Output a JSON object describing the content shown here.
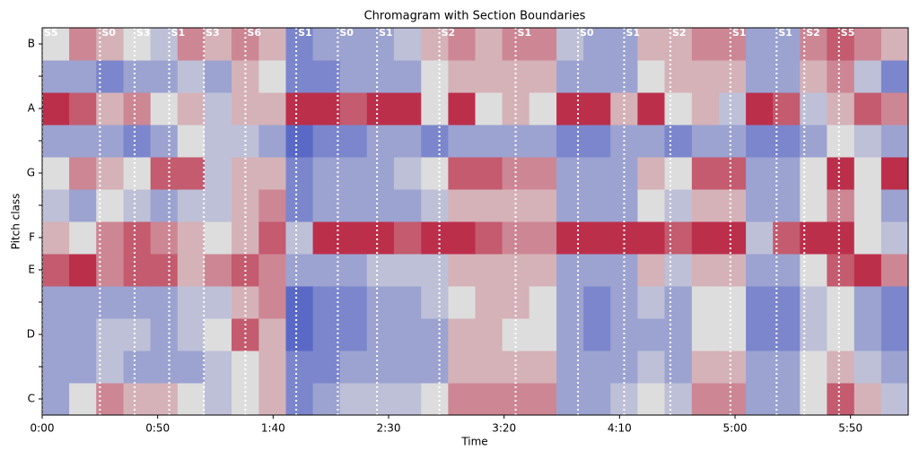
{
  "chart_data": {
    "type": "heatmap",
    "title": "Chromagram with Section Boundaries",
    "x_label": "Time",
    "y_label": "Pitch class",
    "categories": [
      "C",
      null,
      "D",
      null,
      "E",
      "F",
      null,
      "G",
      null,
      "A",
      null,
      "B"
    ],
    "xlim": [
      0,
      375
    ],
    "xticks": [
      {
        "value": 0,
        "label": "0:00"
      },
      {
        "value": 50,
        "label": "0:50"
      },
      {
        "value": 100,
        "label": "1:40"
      },
      {
        "value": 150,
        "label": "2:30"
      },
      {
        "value": 200,
        "label": "3:20"
      },
      {
        "value": 250,
        "label": "4:10"
      },
      {
        "value": 300,
        "label": "5:00"
      },
      {
        "value": 350,
        "label": "5:50"
      }
    ],
    "x_edges": [
      0,
      11.7,
      23.4,
      35.2,
      46.9,
      58.6,
      70.3,
      82,
      93.8,
      105.5,
      117.2,
      128.9,
      140.6,
      152.3,
      164.1,
      175.8,
      187.5,
      199.2,
      210.9,
      222.7,
      234.4,
      246.1,
      257.8,
      269.5,
      281.3,
      293,
      304.7,
      316.4,
      328.1,
      339.8,
      351.6,
      363.3,
      375
    ],
    "colors": [
      "#3b4cc0",
      "#dddddd",
      "#b40426"
    ],
    "zlim": [
      0,
      1
    ],
    "z": [
      [
        0.3,
        0.5,
        0.7,
        0.6,
        0.6,
        0.5,
        0.4,
        0.5,
        0.6,
        0.2,
        0.3,
        0.4,
        0.4,
        0.4,
        0.5,
        0.7,
        0.7,
        0.7,
        0.7,
        0.3,
        0.3,
        0.4,
        0.5,
        0.4,
        0.7,
        0.7,
        0.3,
        0.3,
        0.5,
        0.8,
        0.6,
        0.4
      ],
      [
        0.3,
        0.3,
        0.4,
        0.3,
        0.3,
        0.3,
        0.4,
        0.5,
        0.6,
        0.2,
        0.2,
        0.3,
        0.3,
        0.3,
        0.3,
        0.6,
        0.6,
        0.6,
        0.6,
        0.3,
        0.3,
        0.3,
        0.4,
        0.3,
        0.6,
        0.6,
        0.3,
        0.3,
        0.5,
        0.6,
        0.4,
        0.3
      ],
      [
        0.3,
        0.3,
        0.4,
        0.4,
        0.3,
        0.4,
        0.5,
        0.8,
        0.6,
        0.1,
        0.2,
        0.2,
        0.3,
        0.3,
        0.3,
        0.6,
        0.6,
        0.5,
        0.5,
        0.3,
        0.2,
        0.3,
        0.3,
        0.3,
        0.5,
        0.5,
        0.2,
        0.2,
        0.4,
        0.5,
        0.3,
        0.2
      ],
      [
        0.3,
        0.3,
        0.3,
        0.3,
        0.3,
        0.4,
        0.4,
        0.6,
        0.7,
        0.1,
        0.2,
        0.2,
        0.3,
        0.3,
        0.4,
        0.5,
        0.6,
        0.6,
        0.5,
        0.3,
        0.2,
        0.3,
        0.4,
        0.3,
        0.5,
        0.5,
        0.2,
        0.2,
        0.4,
        0.5,
        0.3,
        0.2
      ],
      [
        0.8,
        0.9,
        0.7,
        0.8,
        0.8,
        0.6,
        0.7,
        0.8,
        0.7,
        0.3,
        0.3,
        0.3,
        0.4,
        0.4,
        0.4,
        0.6,
        0.6,
        0.6,
        0.6,
        0.3,
        0.3,
        0.3,
        0.6,
        0.4,
        0.6,
        0.6,
        0.3,
        0.3,
        0.5,
        0.8,
        0.9,
        0.7
      ],
      [
        0.6,
        0.5,
        0.7,
        0.8,
        0.7,
        0.6,
        0.5,
        0.6,
        0.8,
        0.4,
        0.9,
        0.9,
        0.9,
        0.8,
        0.9,
        0.9,
        0.8,
        0.7,
        0.7,
        0.9,
        0.9,
        0.9,
        0.9,
        0.8,
        0.9,
        0.9,
        0.4,
        0.8,
        0.9,
        0.9,
        0.5,
        0.4
      ],
      [
        0.4,
        0.3,
        0.5,
        0.4,
        0.3,
        0.4,
        0.4,
        0.6,
        0.7,
        0.2,
        0.3,
        0.3,
        0.3,
        0.3,
        0.4,
        0.6,
        0.6,
        0.6,
        0.6,
        0.3,
        0.3,
        0.3,
        0.5,
        0.4,
        0.6,
        0.6,
        0.3,
        0.3,
        0.5,
        0.7,
        0.5,
        0.3
      ],
      [
        0.5,
        0.7,
        0.6,
        0.5,
        0.8,
        0.8,
        0.4,
        0.6,
        0.6,
        0.2,
        0.3,
        0.3,
        0.3,
        0.4,
        0.5,
        0.8,
        0.8,
        0.7,
        0.7,
        0.3,
        0.3,
        0.3,
        0.6,
        0.5,
        0.8,
        0.8,
        0.3,
        0.3,
        0.5,
        0.9,
        0.5,
        0.9
      ],
      [
        0.3,
        0.3,
        0.3,
        0.2,
        0.3,
        0.5,
        0.4,
        0.4,
        0.3,
        0.1,
        0.2,
        0.2,
        0.3,
        0.3,
        0.2,
        0.3,
        0.3,
        0.3,
        0.3,
        0.2,
        0.2,
        0.3,
        0.3,
        0.2,
        0.3,
        0.3,
        0.2,
        0.2,
        0.3,
        0.5,
        0.4,
        0.3
      ],
      [
        0.9,
        0.8,
        0.6,
        0.7,
        0.5,
        0.6,
        0.4,
        0.6,
        0.6,
        0.9,
        0.9,
        0.8,
        0.9,
        0.9,
        0.5,
        0.9,
        0.5,
        0.6,
        0.5,
        0.9,
        0.9,
        0.6,
        0.9,
        0.5,
        0.6,
        0.4,
        0.9,
        0.8,
        0.4,
        0.6,
        0.8,
        0.7
      ],
      [
        0.3,
        0.3,
        0.2,
        0.3,
        0.3,
        0.4,
        0.3,
        0.6,
        0.5,
        0.2,
        0.2,
        0.3,
        0.3,
        0.3,
        0.5,
        0.6,
        0.6,
        0.6,
        0.6,
        0.3,
        0.3,
        0.3,
        0.5,
        0.6,
        0.6,
        0.6,
        0.3,
        0.3,
        0.6,
        0.7,
        0.4,
        0.2
      ],
      [
        0.5,
        0.7,
        0.6,
        0.5,
        0.4,
        0.7,
        0.6,
        0.7,
        0.6,
        0.2,
        0.3,
        0.3,
        0.3,
        0.4,
        0.6,
        0.7,
        0.6,
        0.7,
        0.7,
        0.4,
        0.3,
        0.3,
        0.6,
        0.6,
        0.7,
        0.7,
        0.3,
        0.3,
        0.7,
        0.8,
        0.7,
        0.6
      ]
    ],
    "boundaries": [
      {
        "time": 0,
        "label": "S5"
      },
      {
        "time": 25,
        "label": "S0"
      },
      {
        "time": 40,
        "label": "S3"
      },
      {
        "time": 55,
        "label": "S1"
      },
      {
        "time": 70,
        "label": "S3"
      },
      {
        "time": 88,
        "label": "S6"
      },
      {
        "time": 110,
        "label": "S1"
      },
      {
        "time": 128,
        "label": "S0"
      },
      {
        "time": 145,
        "label": "S1"
      },
      {
        "time": 172,
        "label": "S2"
      },
      {
        "time": 205,
        "label": "S1"
      },
      {
        "time": 232,
        "label": "S0"
      },
      {
        "time": 252,
        "label": "S1"
      },
      {
        "time": 272,
        "label": "S2"
      },
      {
        "time": 298,
        "label": "S1"
      },
      {
        "time": 318,
        "label": "S1"
      },
      {
        "time": 330,
        "label": "S2"
      },
      {
        "time": 345,
        "label": "S5"
      }
    ]
  }
}
